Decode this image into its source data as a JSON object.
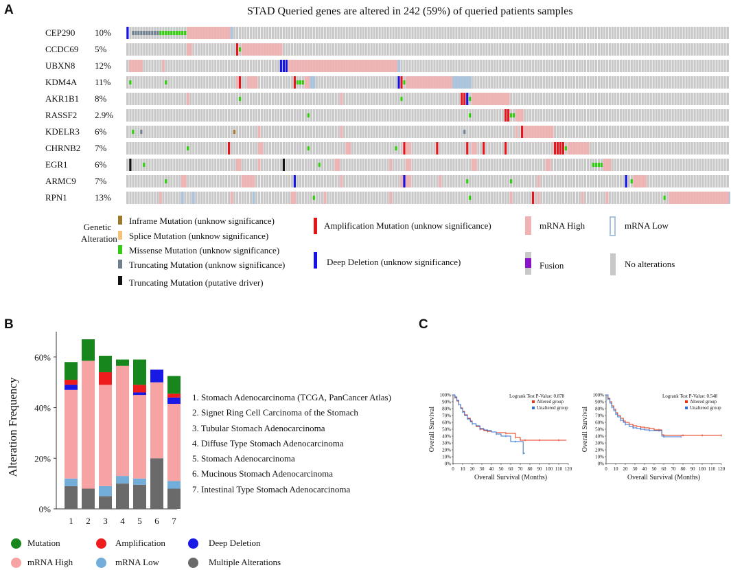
{
  "panelA": {
    "letter": "A",
    "title": "STAD   Queried genes are altered in 242 (59%) of queried patients samples",
    "genes": [
      {
        "name": "CEP290",
        "pct": "10%"
      },
      {
        "name": "CCDC69",
        "pct": "5%"
      },
      {
        "name": "UBXN8",
        "pct": "12%"
      },
      {
        "name": "KDM4A",
        "pct": "11%"
      },
      {
        "name": "AKR1B1",
        "pct": "8%"
      },
      {
        "name": "RASSF2",
        "pct": "2.9%"
      },
      {
        "name": "KDELR3",
        "pct": "6%"
      },
      {
        "name": "CHRNB2",
        "pct": "7%"
      },
      {
        "name": "EGR1",
        "pct": "6%"
      },
      {
        "name": "ARMC9",
        "pct": "7%"
      },
      {
        "name": "RPN1",
        "pct": "13%"
      }
    ],
    "legend": {
      "heading": "Genetic Alteration",
      "inframe": "Inframe Mutation (unknow significance)",
      "splice": "Splice Mutation (unknow significance)",
      "missense": "Missense Mutation (unknow significance)",
      "truncating": "Truncating Mutation (unknow significance)",
      "truncating_driver": "Truncating Mutation (putative driver)",
      "amplification": "Amplification Mutation (unknow significance)",
      "deep_deletion": "Deep Deletion (unknow significance)",
      "mrna_high": "mRNA High",
      "fusion": "Fusion",
      "mrna_low": "mRNA Low",
      "no_alt": "No alterations"
    },
    "colors": {
      "none": "#c8c8c8",
      "high": "#f0b2b2",
      "low": "#a9c3dc",
      "missense": "#33cc11",
      "amp": "#e8141b",
      "del": "#1414e8",
      "trunc": "#6f7f8f",
      "inframe": "#9b7b2b",
      "splice": "#f4c27a",
      "driver": "#111111",
      "fusion": "#8a12c8"
    }
  },
  "panelB": {
    "letter": "B",
    "chart_data": {
      "type": "bar",
      "stacked": true,
      "ylabel": "Alteration Frequency",
      "ylim": [
        0,
        70
      ],
      "yticks": [
        0,
        20,
        40,
        60
      ],
      "ytick_labels": [
        "0%",
        "20%",
        "40%",
        "60%"
      ],
      "categories": [
        "1",
        "2",
        "3",
        "4",
        "5",
        "6",
        "7"
      ],
      "series": [
        {
          "name": "Multiple Alterations",
          "color": "#6a6a6a",
          "values": [
            9,
            8,
            5,
            10,
            9.5,
            20,
            8
          ]
        },
        {
          "name": "mRNA Low",
          "color": "#72aed9",
          "values": [
            3,
            0,
            4,
            3,
            2.5,
            0,
            3
          ]
        },
        {
          "name": "mRNA High",
          "color": "#f7a3a3",
          "values": [
            35,
            50.5,
            40,
            43.5,
            33,
            30,
            30.5
          ]
        },
        {
          "name": "Deep Deletion",
          "color": "#1919e6",
          "values": [
            2,
            0,
            0,
            0,
            1,
            5,
            2.5
          ]
        },
        {
          "name": "Amplification",
          "color": "#ee1c1c",
          "values": [
            2,
            0,
            5,
            0,
            3,
            0,
            1.5
          ]
        },
        {
          "name": "Mutation",
          "color": "#17861d",
          "values": [
            7,
            8.5,
            6.5,
            2.5,
            10,
            0,
            7
          ]
        }
      ]
    },
    "cohorts": [
      "1. Stomach Adenocarcinoma (TCGA, PanCancer Atlas)",
      "2. Signet Ring Cell Carcinoma of the Stomach",
      "3. Tubular Stomach Adenocarcinoma",
      "4. Diffuse Type Stomach Adenocarcinoma",
      "5. Stomach Adenocarcinoma",
      "6. Mucinous Stomach Adenocarcinoma",
      "7. Intestinal Type Stomach Adenocarcinoma"
    ],
    "legend": {
      "mutation": "Mutation",
      "amplification": "Amplification",
      "deep_deletion": "Deep Deletion",
      "mrna_high": "mRNA High",
      "mrna_low": "mRNA Low",
      "multiple": "Multiple Alterations"
    }
  },
  "panelC": {
    "letter": "C",
    "chart_data": [
      {
        "type": "line",
        "title": "Logrank Test P-Value: 0.878",
        "xlabel": "Overall Survival (Months)",
        "ylabel": "Overall Survival",
        "xlim": [
          0,
          120
        ],
        "ylim": [
          0,
          100
        ],
        "xticks": [
          0,
          10,
          20,
          30,
          40,
          50,
          60,
          70,
          80,
          90,
          100,
          110,
          120
        ],
        "yticks": [
          0,
          10,
          20,
          30,
          40,
          50,
          60,
          70,
          80,
          90,
          100
        ],
        "series": [
          {
            "name": "Altered group",
            "color": "#e63312",
            "x": [
              0,
              2,
              4,
              6,
              8,
              10,
              12,
              15,
              18,
              20,
              24,
              28,
              32,
              36,
              40,
              45,
              50,
              55,
              60,
              65,
              70,
              75,
              80,
              90,
              100,
              110,
              118
            ],
            "y": [
              100,
              96,
              91,
              86,
              81,
              76,
              71,
              66,
              62,
              58,
              54,
              50,
              48,
              47,
              46,
              45,
              45,
              44,
              44,
              38,
              34,
              34,
              34,
              34,
              34,
              34,
              34
            ]
          },
          {
            "name": "Unaltered group",
            "color": "#2f6fd0",
            "x": [
              0,
              2,
              4,
              6,
              8,
              10,
              12,
              15,
              18,
              20,
              24,
              28,
              32,
              36,
              40,
              45,
              50,
              55,
              60,
              65,
              70,
              73,
              75
            ],
            "y": [
              100,
              97,
              92,
              86,
              80,
              75,
              70,
              65,
              61,
              58,
              55,
              51,
              49,
              48,
              46,
              43,
              40,
              40,
              32,
              32,
              32,
              15,
              15
            ]
          }
        ]
      },
      {
        "type": "line",
        "title": "Logrank Test P-Value: 0.548",
        "xlabel": "Overall Survival (Months)",
        "ylabel": "Overall Survival",
        "xlim": [
          0,
          120
        ],
        "ylim": [
          0,
          100
        ],
        "xticks": [
          0,
          10,
          20,
          30,
          40,
          50,
          60,
          70,
          80,
          90,
          100,
          110,
          120
        ],
        "yticks": [
          0,
          10,
          20,
          30,
          40,
          50,
          60,
          70,
          80,
          90,
          100
        ],
        "series": [
          {
            "name": "Altered group",
            "color": "#e63312",
            "x": [
              0,
              2,
              4,
              6,
              8,
              10,
              12,
              15,
              18,
              20,
              24,
              28,
              32,
              36,
              40,
              45,
              50,
              55,
              58,
              60,
              70,
              80,
              90,
              100,
              110,
              120
            ],
            "y": [
              100,
              95,
              90,
              84,
              79,
              74,
              70,
              66,
              62,
              60,
              57,
              55,
              54,
              53,
              52,
              51,
              49,
              49,
              42,
              41,
              41,
              41,
              41,
              41,
              41,
              41
            ]
          },
          {
            "name": "Unaltered group",
            "color": "#2f6fd0",
            "x": [
              0,
              2,
              4,
              6,
              8,
              10,
              12,
              15,
              18,
              20,
              24,
              28,
              32,
              36,
              40,
              45,
              50,
              55,
              58,
              60,
              70,
              78
            ],
            "y": [
              100,
              94,
              88,
              82,
              77,
              72,
              68,
              63,
              60,
              57,
              54,
              52,
              51,
              50,
              49,
              48,
              48,
              48,
              40,
              39,
              39,
              39
            ]
          }
        ]
      }
    ],
    "legend": {
      "altered": "Altered group",
      "unaltered": "Unaltered group"
    }
  }
}
